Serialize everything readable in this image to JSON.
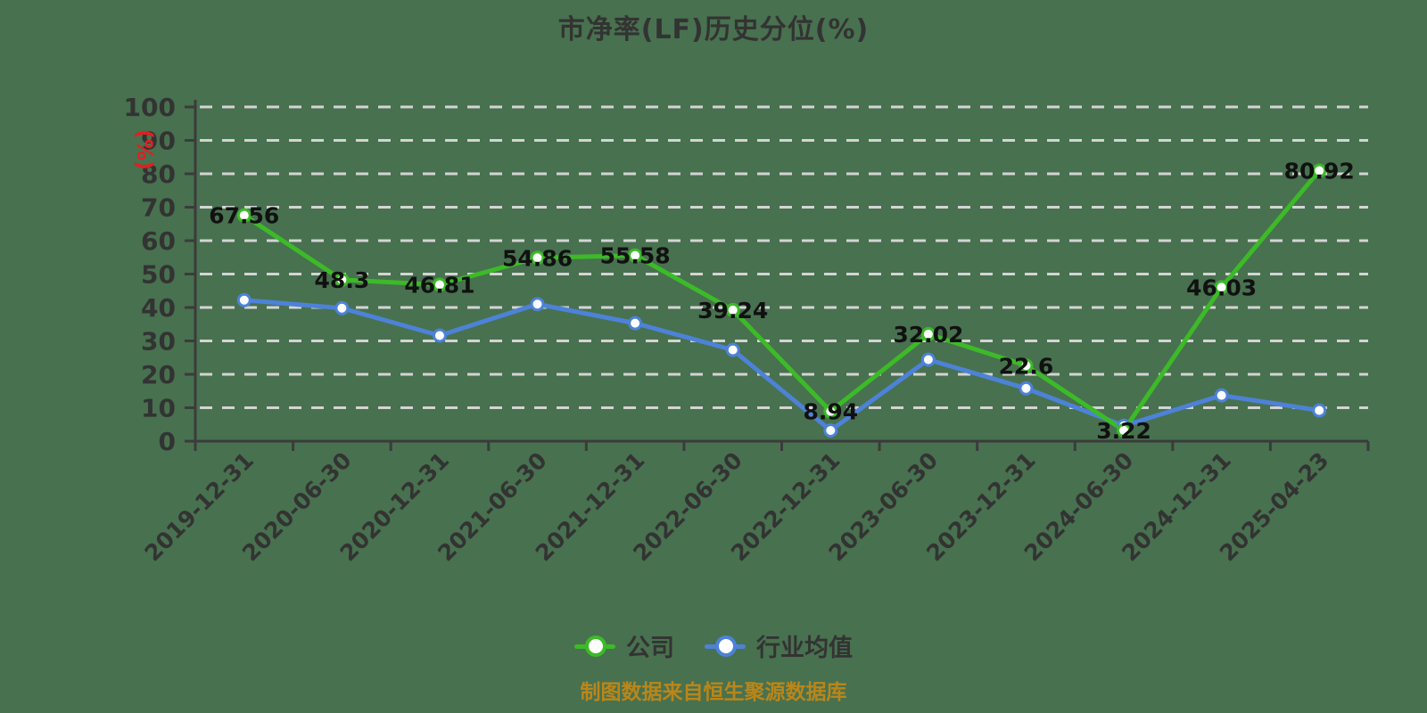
{
  "page": {
    "background_color": "#48714f"
  },
  "header": {
    "title": "市净率(LF)历史分位(%)"
  },
  "footer": {
    "credit": "制图数据来自恒生聚源数据库"
  },
  "legend": {
    "items": [
      {
        "label": "公司",
        "slug": "company",
        "color": "#3cba28"
      },
      {
        "label": "行业均值",
        "slug": "industry-average",
        "color": "#4d82d8"
      }
    ]
  },
  "chart_data": {
    "type": "line",
    "title": "市净率(LF)历史分位(%)",
    "ylabel": "(%)",
    "xlabel": "",
    "ylim": [
      0,
      100
    ],
    "ytick_step": 10,
    "grid": "horizontal-dashed",
    "legend_position": "bottom",
    "categories": [
      "2019-12-31",
      "2020-06-30",
      "2020-12-31",
      "2021-06-30",
      "2021-12-31",
      "2022-06-30",
      "2022-12-31",
      "2023-06-30",
      "2023-12-31",
      "2024-06-30",
      "2024-12-31",
      "2025-04-23"
    ],
    "series": [
      {
        "name": "公司",
        "slug": "company",
        "color": "#3cba28",
        "values": [
          67.56,
          48.3,
          46.81,
          54.86,
          55.58,
          39.24,
          8.94,
          32.02,
          22.6,
          3.22,
          46.03,
          80.92
        ],
        "show_labels": true
      },
      {
        "name": "行业均值",
        "slug": "industry-average",
        "color": "#4d82d8",
        "values": [
          42.2,
          39.8,
          31.6,
          41.0,
          35.3,
          27.3,
          3.2,
          24.4,
          15.8,
          4.6,
          13.7,
          9.2
        ],
        "show_labels": false
      }
    ],
    "colors": {
      "grid": "#d4d4d4",
      "axis": "#3b3b3b",
      "tick_label": "#333333",
      "value_label": "#111111",
      "ylabel_name": "#e02020",
      "title": "#333333",
      "footer": "#ba8619",
      "marker_fill": "#ffffff"
    }
  }
}
